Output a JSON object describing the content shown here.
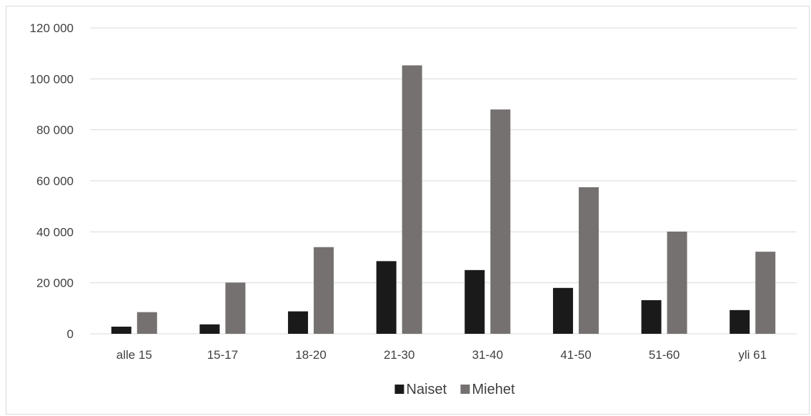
{
  "chart_data": {
    "type": "bar",
    "title": "",
    "xlabel": "",
    "ylabel": "",
    "categories": [
      "alle 15",
      "15-17",
      "18-20",
      "21-30",
      "31-40",
      "41-50",
      "51-60",
      "yli 61"
    ],
    "series": [
      {
        "name": "Naiset",
        "color": "#1a1a1a",
        "values": [
          2800,
          3700,
          8800,
          28500,
          25000,
          18000,
          13200,
          9300
        ]
      },
      {
        "name": "Miehet",
        "color": "#767171",
        "values": [
          8500,
          20100,
          34000,
          105300,
          88000,
          57500,
          40100,
          32200
        ]
      }
    ],
    "ylim": [
      0,
      120000
    ],
    "yticks": [
      0,
      20000,
      40000,
      60000,
      80000,
      100000,
      120000
    ],
    "ytick_labels": [
      "0",
      "20 000",
      "40 000",
      "60 000",
      "80 000",
      "100 000",
      "120 000"
    ],
    "grid": true,
    "legend_position": "bottom",
    "colors": {
      "grid": "#d9d9d9",
      "axis": "#d9d9d9",
      "text": "#404040"
    }
  }
}
